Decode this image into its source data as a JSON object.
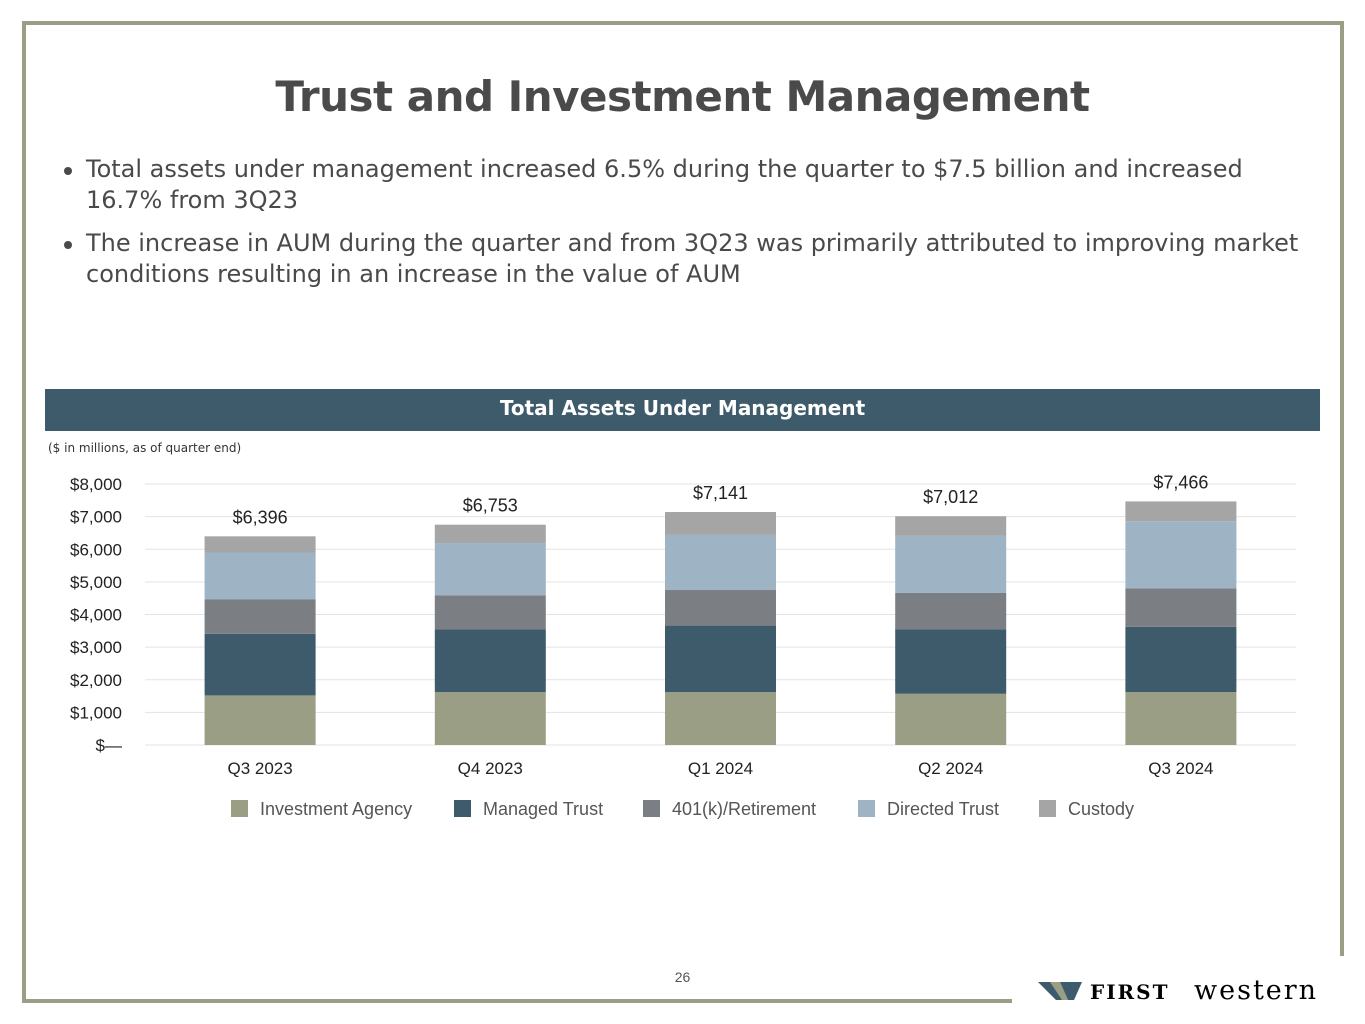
{
  "title": "Trust and Investment Management",
  "bullets": [
    "Total assets under management increased 6.5% during the quarter to $7.5 billion and increased 16.7% from 3Q23",
    "The increase in AUM during the quarter and from 3Q23 was primarily attributed to improving market conditions resulting in an increase in the value of AUM"
  ],
  "chart_header": "Total Assets Under Management",
  "chart_note": "($ in millions, as of quarter end)",
  "page_number": "26",
  "logo": {
    "first": "FIRST",
    "western": "western"
  },
  "colors": {
    "frame": "#9a9e85",
    "header": "#3e5b6c",
    "investment_agency": "#9a9e85",
    "managed_trust": "#3e5b6c",
    "retirement": "#7b7e82",
    "directed_trust": "#9eb3c3",
    "custody": "#a5a5a6"
  },
  "chart_data": {
    "type": "bar",
    "stacked": true,
    "categories": [
      "Q3 2023",
      "Q4 2023",
      "Q1 2024",
      "Q2 2024",
      "Q3 2024"
    ],
    "series": [
      {
        "name": "Investment Agency",
        "values": [
          1520,
          1620,
          1620,
          1570,
          1620
        ]
      },
      {
        "name": "Managed Trust",
        "values": [
          1890,
          1930,
          2040,
          1980,
          2000
        ]
      },
      {
        "name": "401(k)/Retirement",
        "values": [
          1050,
          1040,
          1090,
          1110,
          1180
        ]
      },
      {
        "name": "Directed Trust",
        "values": [
          1440,
          1600,
          1690,
          1760,
          2060
        ]
      },
      {
        "name": "Custody",
        "values": [
          496,
          563,
          701,
          592,
          606
        ]
      }
    ],
    "totals": [
      "$6,396",
      "$6,753",
      "$7,141",
      "$7,012",
      "$7,466"
    ],
    "total_values": [
      6396,
      6753,
      7141,
      7012,
      7466
    ],
    "ylim": [
      0,
      8000
    ],
    "yticks": [
      0,
      1000,
      2000,
      3000,
      4000,
      5000,
      6000,
      7000,
      8000
    ],
    "ytick_labels": [
      "$—",
      "$1,000",
      "$2,000",
      "$3,000",
      "$4,000",
      "$5,000",
      "$6,000",
      "$7,000",
      "$8,000"
    ],
    "legend_position": "bottom",
    "grid": true
  }
}
